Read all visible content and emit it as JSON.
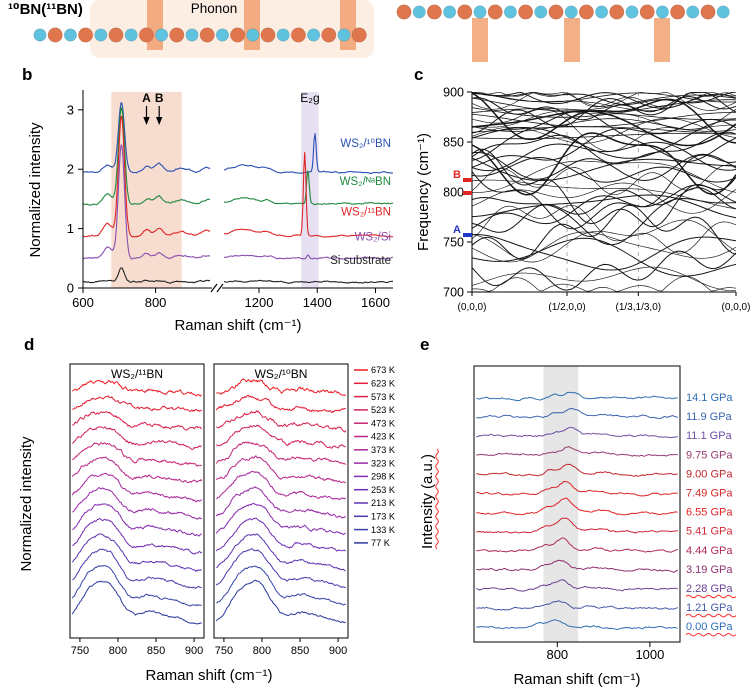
{
  "figure": {
    "background": "#ffffff",
    "panel_letters": {
      "b": "b",
      "c": "c",
      "d": "d",
      "e": "e"
    }
  },
  "panel_a": {
    "isotope_label": "¹⁰BN(¹¹BN)",
    "phonon_label": "Phonon",
    "atom_color_blue": "#5fc3e0",
    "atom_color_orange": "#e0764e",
    "arrow_color": "#f09a66"
  },
  "chart_data": [
    {
      "id": "b",
      "type": "line",
      "xlabel": "Raman shift (cm⁻¹)",
      "ylabel": "Normalized intensity",
      "xticks": [
        600,
        800,
        1200,
        1400,
        1600
      ],
      "xlim_segments": [
        [
          600,
          950
        ],
        [
          1080,
          1660
        ]
      ],
      "axis_break": true,
      "ylim": [
        0,
        3.3
      ],
      "yticks": [
        0,
        1,
        2,
        3
      ],
      "shaded_bands": [
        {
          "x0": 678,
          "x1": 872,
          "color": "#f7ddd0"
        },
        {
          "x0": 1345,
          "x1": 1405,
          "color": "#e6e0f2"
        }
      ],
      "annotations": [
        {
          "text": "A",
          "x": 775,
          "arrow": true
        },
        {
          "text": "B",
          "x": 810,
          "arrow": true
        },
        {
          "text": "E₂g",
          "x": 1375,
          "arrow": false
        }
      ],
      "series": [
        {
          "name": "WS₂/¹⁰BN",
          "color": "#2b50b4",
          "offset": 1.95,
          "main_amp": 1.18,
          "small_amp": 0.11,
          "bump1150": 0.12,
          "e2g_center": 1392,
          "e2g_amp": 0.66,
          "label_value": 2.37
        },
        {
          "name": "WS₂/ᴺᵃBN",
          "color": "#1f8a3e",
          "offset": 1.42,
          "main_amp": 1.62,
          "small_amp": 0.1,
          "bump1150": 0.1,
          "e2g_center": 1368,
          "e2g_amp": 0.58,
          "label_value": 1.73
        },
        {
          "name": "WS₂/¹¹BN",
          "color": "#e02525",
          "offset": 0.88,
          "main_amp": 2.02,
          "small_amp": 0.1,
          "bump1150": 0.1,
          "e2g_center": 1357,
          "e2g_amp": 1.4,
          "label_value": 1.22
        },
        {
          "name": "WS₂/Si",
          "color": "#8a4fb0",
          "offset": 0.5,
          "main_amp": 1.92,
          "small_amp": 0.07,
          "bump1150": 0.05,
          "e2g_center": 1368,
          "e2g_amp": 0.06,
          "label_value": 0.8
        },
        {
          "name": "Si substrate",
          "color": "#222222",
          "offset": 0.1,
          "main_amp": 0.24,
          "small_amp": 0.02,
          "bump1150": 0.02,
          "e2g_center": 1368,
          "e2g_amp": 0.0,
          "label_value": 0.4
        }
      ]
    },
    {
      "id": "c",
      "type": "line",
      "ylabel": "Frequency (cm⁻¹)",
      "ylim": [
        700,
        900
      ],
      "yticks": [
        700,
        750,
        800,
        850,
        900
      ],
      "xticklabels": [
        "(0,0,0)",
        "(1/2,0,0)",
        "(1/3,1/3,0)",
        "(0,0,0)"
      ],
      "xtick_positions": [
        0,
        0.36,
        0.63,
        1
      ],
      "dashed_gridlines": [
        0.36,
        0.63
      ],
      "markers": [
        {
          "label": "B",
          "color": "#e02525",
          "freqs": [
            812,
            799
          ]
        },
        {
          "label": "A",
          "color": "#2338c8",
          "freqs": [
            757
          ]
        }
      ],
      "n_branches": 40,
      "n_flat_top": 8,
      "seed": 9
    },
    {
      "id": "d",
      "type": "line",
      "xlabel": "Raman shift (cm⁻¹)",
      "ylabel": "Normalized intensity",
      "xticks": [
        750,
        800,
        850,
        900
      ],
      "xlim": [
        737,
        913
      ],
      "subpanels": [
        {
          "title": "WS₂/¹¹BN",
          "peak_center": 786
        },
        {
          "title": "WS₂/¹⁰BN",
          "peak_center": 795
        }
      ],
      "temperatures": [
        {
          "label": "673 K",
          "color": "#ec1c24"
        },
        {
          "label": "623 K",
          "color": "#e31e38"
        },
        {
          "label": "573 K",
          "color": "#da204c"
        },
        {
          "label": "523 K",
          "color": "#d02260"
        },
        {
          "label": "473 K",
          "color": "#c52474"
        },
        {
          "label": "423 K",
          "color": "#b92688"
        },
        {
          "label": "373 K",
          "color": "#ab289c"
        },
        {
          "label": "323 K",
          "color": "#9929a8"
        },
        {
          "label": "298 K",
          "color": "#852bb0"
        },
        {
          "label": "253 K",
          "color": "#6f2eb4"
        },
        {
          "label": "213 K",
          "color": "#5a34b2"
        },
        {
          "label": "173 K",
          "color": "#473cae"
        },
        {
          "label": "133 K",
          "color": "#3845a8"
        },
        {
          "label": "77 K",
          "color": "#2c3a9c"
        }
      ]
    },
    {
      "id": "e",
      "type": "line",
      "xlabel": "Raman shift (cm⁻¹)",
      "ylabel": "Intensity (a.u.)",
      "ylabel_flagged": true,
      "xticks": [
        800,
        1000
      ],
      "xlim": [
        620,
        1065
      ],
      "shaded_band": {
        "x0": 770,
        "x1": 845,
        "color": "#dcdcdc"
      },
      "pressures": [
        {
          "label": "14.1 GPa",
          "color": "#2e6db4",
          "flag": false
        },
        {
          "label": "11.9 GPa",
          "color": "#3c63b0",
          "flag": false
        },
        {
          "label": "11.1 GPa",
          "color": "#6c4da4",
          "flag": false
        },
        {
          "label": "9.75 GPa",
          "color": "#963a70",
          "flag": false
        },
        {
          "label": "9.00 GPa",
          "color": "#c1272d",
          "flag": false
        },
        {
          "label": "7.49 GPa",
          "color": "#d82428",
          "flag": false
        },
        {
          "label": "6.55 GPa",
          "color": "#e22222",
          "flag": false
        },
        {
          "label": "5.41 GPa",
          "color": "#d02434",
          "flag": false
        },
        {
          "label": "4.44 GPa",
          "color": "#b02a50",
          "flag": false
        },
        {
          "label": "3.19 GPa",
          "color": "#8e3070",
          "flag": false
        },
        {
          "label": "2.28 GPa",
          "color": "#6a4096",
          "flag": true
        },
        {
          "label": "1.21 GPa",
          "color": "#4858a8",
          "flag": true
        },
        {
          "label": "0.00 GPa",
          "color": "#2e6db4",
          "flag": true
        }
      ]
    }
  ]
}
